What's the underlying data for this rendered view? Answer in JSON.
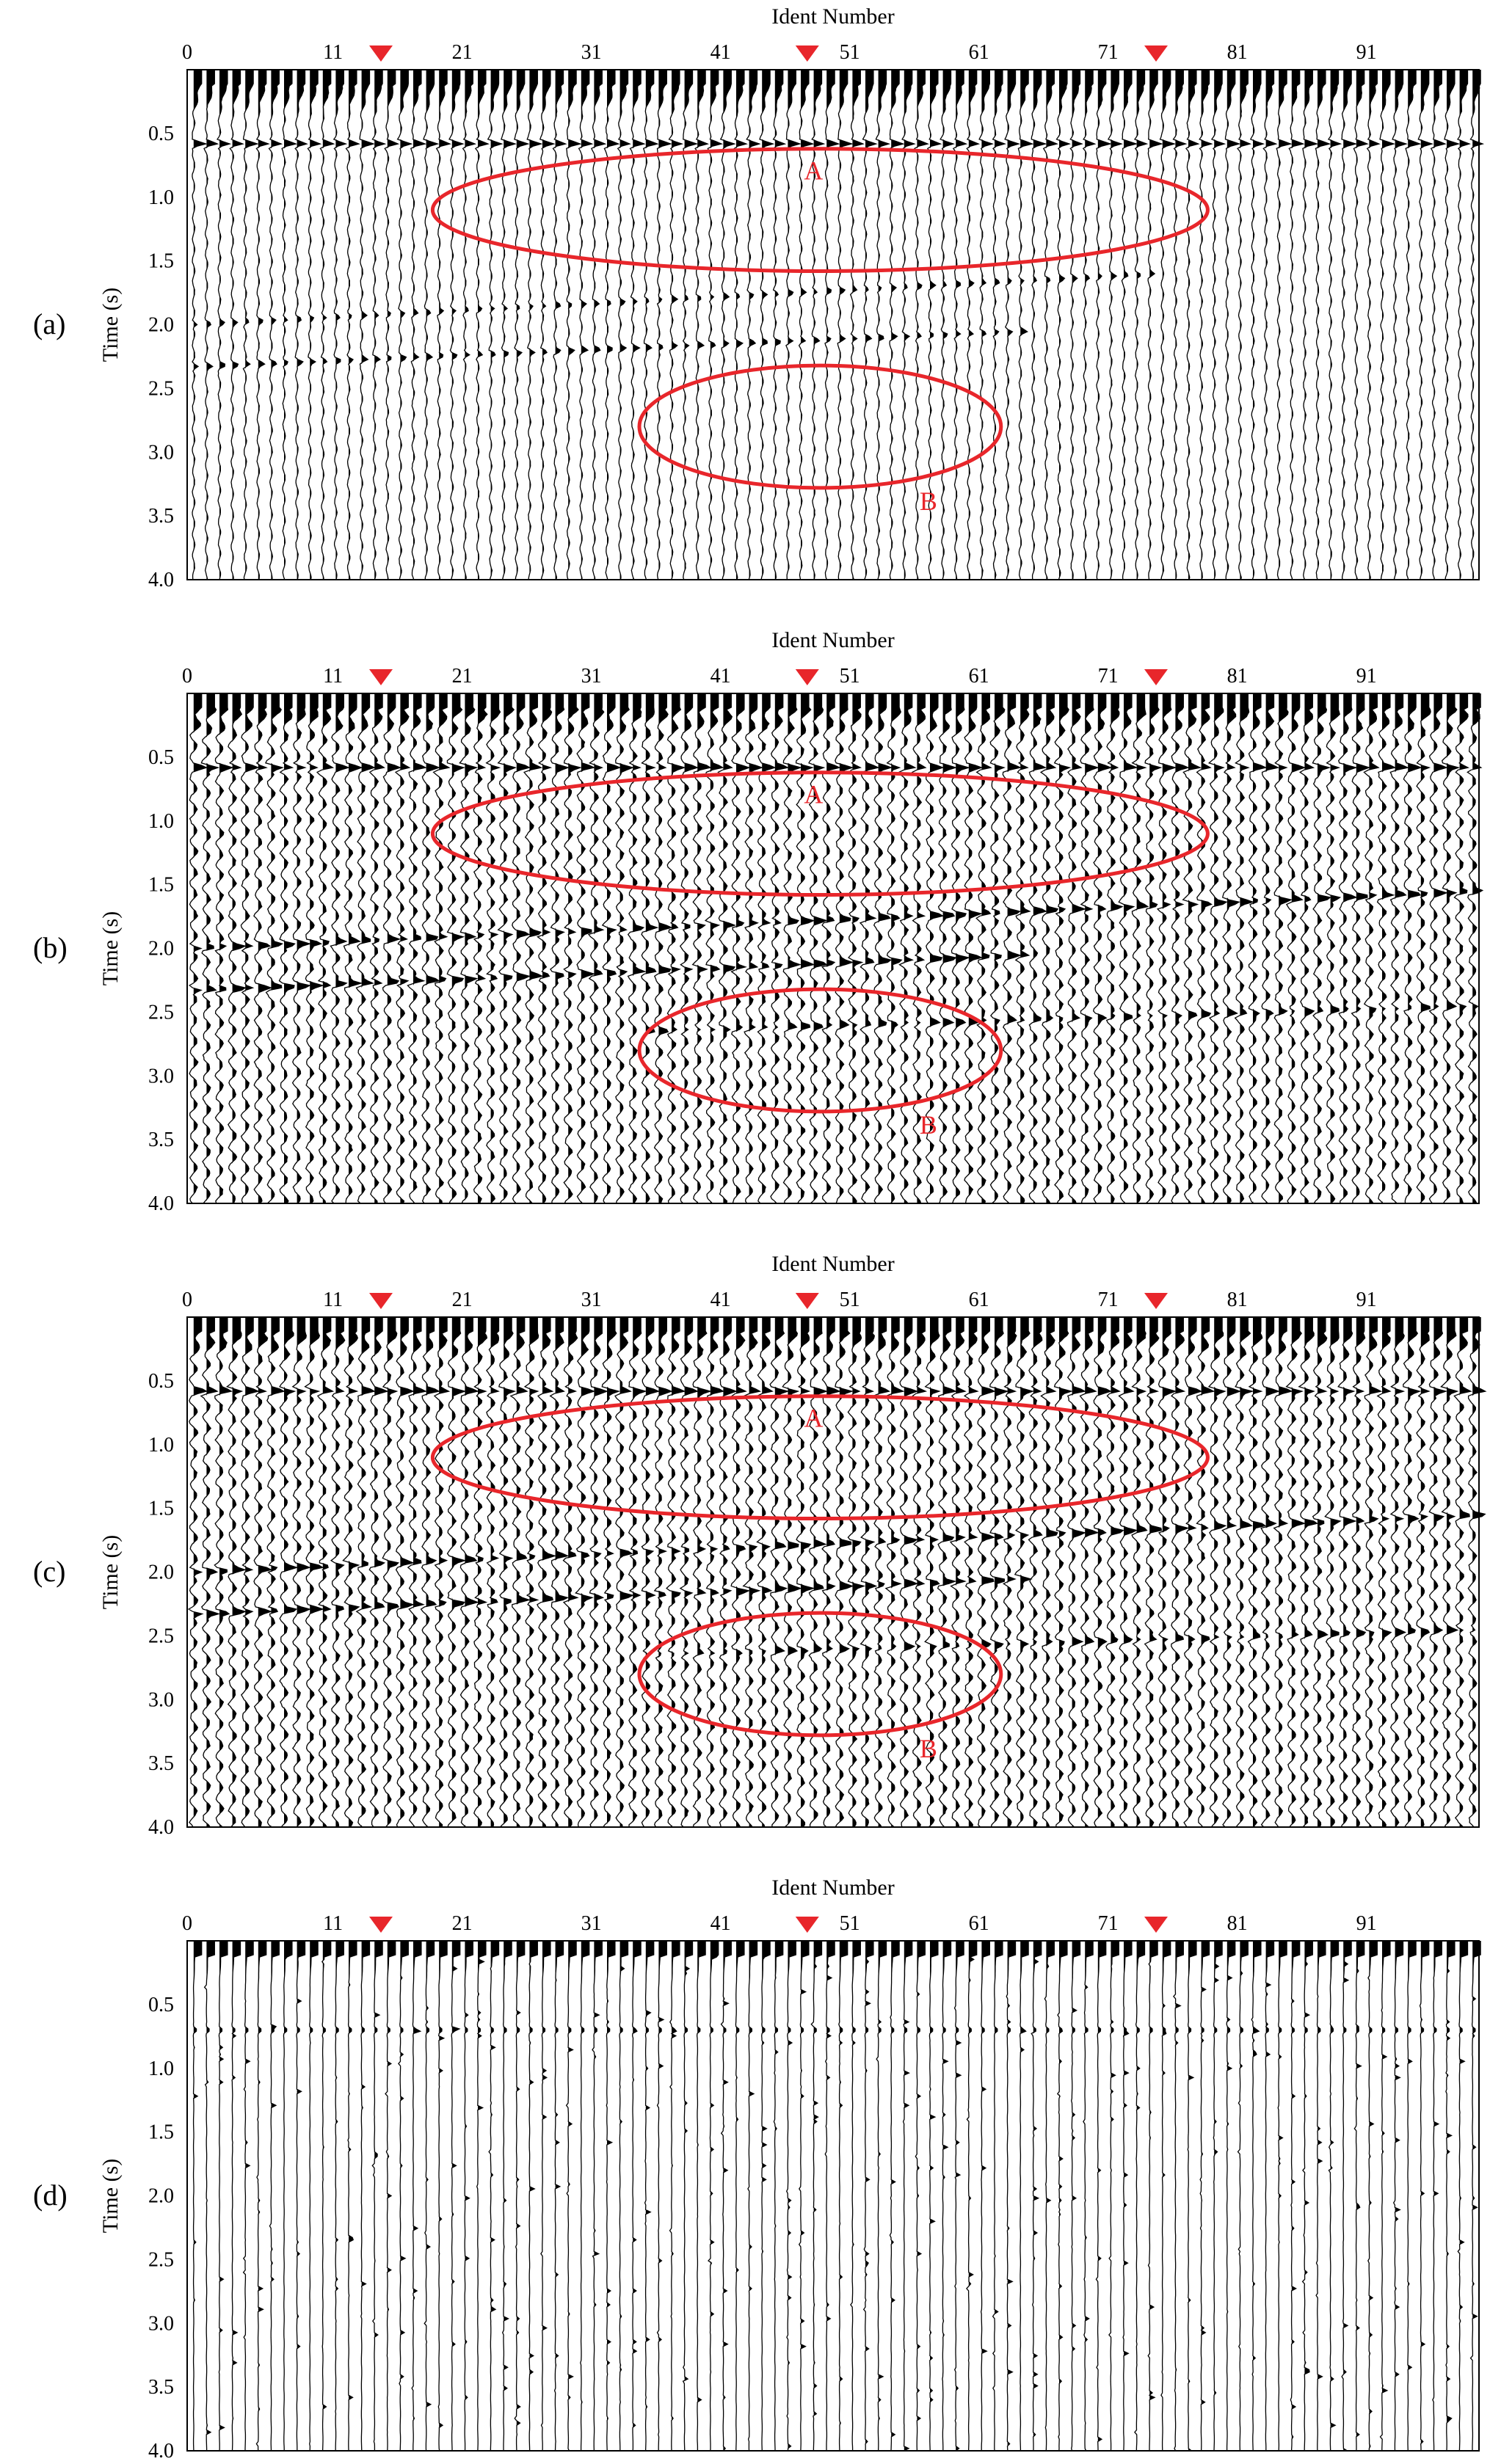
{
  "chart_data": [
    {
      "type": "wiggle",
      "panel_label": "(a)",
      "xlabel": "Ident Number",
      "ylabel": "Time (s)",
      "xticks": [
        "0",
        "11",
        "21",
        "31",
        "41",
        "51",
        "61",
        "71",
        "81",
        "91"
      ],
      "yticks": [
        "0.5",
        "1.0",
        "1.5",
        "2.0",
        "2.5",
        "3.0",
        "3.5",
        "4.0"
      ],
      "xlim": [
        0,
        100
      ],
      "ylim": [
        0,
        4.0
      ],
      "trace_count": 100,
      "markers": [
        15,
        48,
        75
      ],
      "marker_color": "#e8262b",
      "annotations": [
        {
          "label": "A",
          "cx": 49,
          "cy": 1.1,
          "rx": 30,
          "ry": 0.48
        },
        {
          "label": "B",
          "cx": 49,
          "cy": 2.8,
          "rx": 14,
          "ry": 0.48
        }
      ],
      "events": [
        {
          "t0": 0.58,
          "t1": 0.58,
          "x0": 0,
          "x1": 100,
          "strength": 1.0
        },
        {
          "t0": 2.0,
          "t1": 1.6,
          "x0": 0,
          "x1": 75,
          "strength": 0.4
        },
        {
          "t0": 2.33,
          "t1": 2.05,
          "x0": 0,
          "x1": 65,
          "strength": 0.5
        }
      ],
      "noise_level": "low"
    },
    {
      "type": "wiggle",
      "panel_label": "(b)",
      "xlabel": "Ident Number",
      "ylabel": "Time (s)",
      "xticks": [
        "0",
        "11",
        "21",
        "31",
        "41",
        "51",
        "61",
        "71",
        "81",
        "91"
      ],
      "yticks": [
        "0.5",
        "1.0",
        "1.5",
        "2.0",
        "2.5",
        "3.0",
        "3.5",
        "4.0"
      ],
      "xlim": [
        0,
        100
      ],
      "ylim": [
        0,
        4.0
      ],
      "trace_count": 100,
      "markers": [
        15,
        48,
        75
      ],
      "marker_color": "#e8262b",
      "annotations": [
        {
          "label": "A",
          "cx": 49,
          "cy": 1.1,
          "rx": 30,
          "ry": 0.48
        },
        {
          "label": "B",
          "cx": 49,
          "cy": 2.8,
          "rx": 14,
          "ry": 0.48
        }
      ],
      "events": [
        {
          "t0": 0.58,
          "t1": 0.58,
          "x0": 0,
          "x1": 100,
          "strength": 1.0
        },
        {
          "t0": 2.0,
          "t1": 1.55,
          "x0": 0,
          "x1": 100,
          "strength": 0.9
        },
        {
          "t0": 2.33,
          "t1": 2.05,
          "x0": 0,
          "x1": 65,
          "strength": 1.0
        },
        {
          "t0": 2.65,
          "t1": 2.45,
          "x0": 35,
          "x1": 100,
          "strength": 0.6
        }
      ],
      "noise_level": "high"
    },
    {
      "type": "wiggle",
      "panel_label": "(c)",
      "xlabel": "Ident Number",
      "ylabel": "Time (s)",
      "xticks": [
        "0",
        "11",
        "21",
        "31",
        "41",
        "51",
        "61",
        "71",
        "81",
        "91"
      ],
      "yticks": [
        "0.5",
        "1.0",
        "1.5",
        "2.0",
        "2.5",
        "3.0",
        "3.5",
        "4.0"
      ],
      "xlim": [
        0,
        100
      ],
      "ylim": [
        0,
        4.0
      ],
      "trace_count": 100,
      "markers": [
        15,
        48,
        75
      ],
      "marker_color": "#e8262b",
      "annotations": [
        {
          "label": "A",
          "cx": 49,
          "cy": 1.1,
          "rx": 30,
          "ry": 0.48
        },
        {
          "label": "B",
          "cx": 49,
          "cy": 2.8,
          "rx": 14,
          "ry": 0.48
        }
      ],
      "events": [
        {
          "t0": 0.58,
          "t1": 0.58,
          "x0": 0,
          "x1": 100,
          "strength": 1.0
        },
        {
          "t0": 2.0,
          "t1": 1.55,
          "x0": 0,
          "x1": 100,
          "strength": 0.9
        },
        {
          "t0": 2.33,
          "t1": 2.05,
          "x0": 0,
          "x1": 65,
          "strength": 1.0
        },
        {
          "t0": 2.65,
          "t1": 2.45,
          "x0": 35,
          "x1": 100,
          "strength": 0.6
        }
      ],
      "noise_level": "high"
    },
    {
      "type": "wiggle",
      "panel_label": "(d)",
      "xlabel": "Ident Number",
      "ylabel": "Time (s)",
      "xticks": [
        "0",
        "11",
        "21",
        "31",
        "41",
        "51",
        "61",
        "71",
        "81",
        "91"
      ],
      "yticks": [
        "0.5",
        "1.0",
        "1.5",
        "2.0",
        "2.5",
        "3.0",
        "3.5",
        "4.0"
      ],
      "xlim": [
        0,
        100
      ],
      "ylim": [
        0,
        4.0
      ],
      "trace_count": 100,
      "markers": [
        15,
        48,
        75
      ],
      "marker_color": "#e8262b",
      "annotations": [],
      "events": [
        {
          "t0": 0.7,
          "t1": 0.7,
          "x0": 0,
          "x1": 100,
          "strength": 0.3
        }
      ],
      "noise_level": "residual"
    }
  ]
}
